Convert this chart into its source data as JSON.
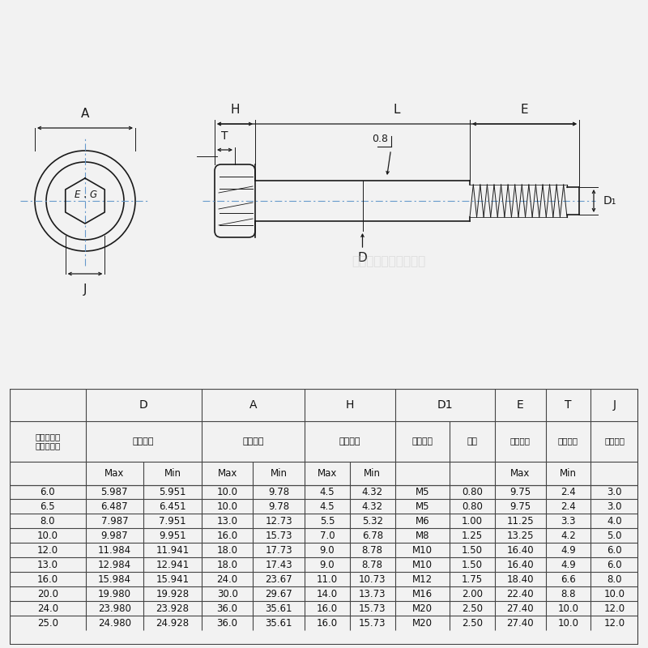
{
  "bg_color": "#f2f2f2",
  "rows": [
    [
      "6.0",
      "5.987",
      "5.951",
      "10.0",
      "9.78",
      "4.5",
      "4.32",
      "M5",
      "0.80",
      "9.75",
      "2.4",
      "3.0"
    ],
    [
      "6.5",
      "6.487",
      "6.451",
      "10.0",
      "9.78",
      "4.5",
      "4.32",
      "M5",
      "0.80",
      "9.75",
      "2.4",
      "3.0"
    ],
    [
      "8.0",
      "7.987",
      "7.951",
      "13.0",
      "12.73",
      "5.5",
      "5.32",
      "M6",
      "1.00",
      "11.25",
      "3.3",
      "4.0"
    ],
    [
      "10.0",
      "9.987",
      "9.951",
      "16.0",
      "15.73",
      "7.0",
      "6.78",
      "M8",
      "1.25",
      "13.25",
      "4.2",
      "5.0"
    ],
    [
      "12.0",
      "11.984",
      "11.941",
      "18.0",
      "17.73",
      "9.0",
      "8.78",
      "M10",
      "1.50",
      "16.40",
      "4.9",
      "6.0"
    ],
    [
      "13.0",
      "12.984",
      "12.941",
      "18.0",
      "17.43",
      "9.0",
      "8.78",
      "M10",
      "1.50",
      "16.40",
      "4.9",
      "6.0"
    ],
    [
      "16.0",
      "15.984",
      "15.941",
      "24.0",
      "23.67",
      "11.0",
      "10.73",
      "M12",
      "1.75",
      "18.40",
      "6.6",
      "8.0"
    ],
    [
      "20.0",
      "19.980",
      "19.928",
      "30.0",
      "29.67",
      "14.0",
      "13.73",
      "M16",
      "2.00",
      "22.40",
      "8.8",
      "10.0"
    ],
    [
      "24.0",
      "23.980",
      "23.928",
      "36.0",
      "35.61",
      "16.0",
      "15.73",
      "M20",
      "2.50",
      "27.40",
      "10.0",
      "12.0"
    ],
    [
      "25.0",
      "24.980",
      "24.928",
      "36.0",
      "35.61",
      "16.0",
      "15.73",
      "M20",
      "2.50",
      "27.40",
      "10.0",
      "12.0"
    ]
  ],
  "watermark": "愛清涂装零件有限公司"
}
